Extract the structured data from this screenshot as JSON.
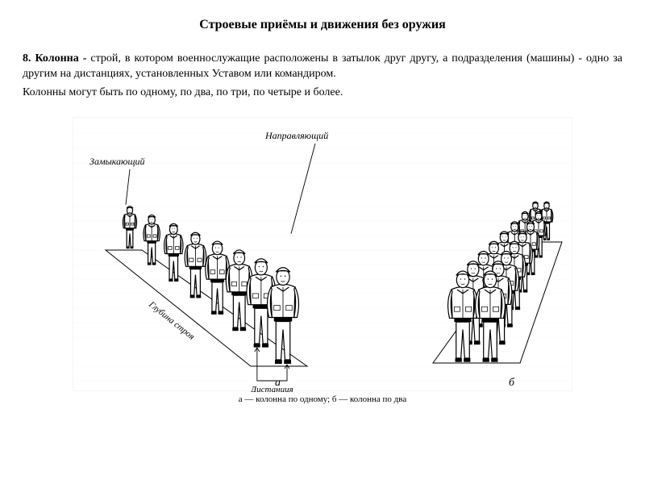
{
  "title": "Строевые приёмы и движения без оружия",
  "para1_bold": "8. Колонна -",
  "para1_rest": " строй, в котором военнослужащие расположены в затылок друг другу, а подразделения (машины) - одно за другим на дистанциях, установленных Уставом или командиром.",
  "para2": "Колонны могут быть по одному, по два, по три, по четыре и более.",
  "labels": {
    "leading": "Направляющий",
    "closing": "Замыкающий",
    "depth": "Глубина строя",
    "distance": "Дистанция",
    "a_letter": "а",
    "b_letter": "б"
  },
  "caption": "а — колонна по одному; б — колонна по два",
  "style": {
    "stroke": "#000000",
    "stroke_width": 1.2,
    "bg_faint": "#f5f5f5",
    "faint_line": "#c8c8c8",
    "soldier_fill": "#ffffff",
    "title_fontsize": 16,
    "body_fontsize": 14,
    "label_fontsize": 12,
    "caption_fontsize": 11,
    "figure_width": 620,
    "figure_height": 340,
    "columnA_count": 8,
    "columnB_count": 8
  }
}
